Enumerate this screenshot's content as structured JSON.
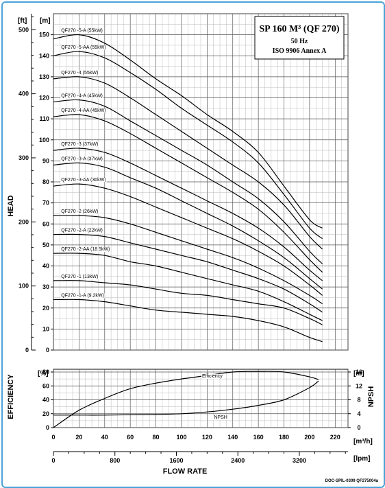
{
  "chart_data": [
    {
      "type": "line",
      "title": "SP 160 M³ (QF 270)",
      "subtitle_lines": [
        "50 Hz",
        "ISO 9906 Annex A"
      ],
      "ylabel": "HEAD",
      "y_unit_left": "[ft]",
      "y_unit_right": "[m]",
      "ylim_m": [
        0,
        150
      ],
      "ylim_ft": [
        0,
        500
      ],
      "y_ticks_m": [
        "150",
        "140",
        "130",
        "120",
        "110",
        "100",
        "90",
        "80",
        "70",
        "60",
        "50",
        "40",
        "30",
        "20",
        "10",
        "0"
      ],
      "y_ticks_ft": [
        "500",
        "400",
        "300",
        "200",
        "100",
        "0"
      ],
      "xlim": [
        0,
        230
      ],
      "grid": true,
      "series": [
        {
          "name": "QF270 -5-A (55kW)",
          "points": [
            [
              0,
              148
            ],
            [
              20,
              150
            ],
            [
              40,
              146
            ],
            [
              60,
              138
            ],
            [
              80,
              129
            ],
            [
              100,
              121
            ],
            [
              120,
              112
            ],
            [
              140,
              104
            ],
            [
              160,
              94
            ],
            [
              180,
              78
            ],
            [
              200,
              62
            ],
            [
              210,
              58
            ]
          ]
        },
        {
          "name": "QF270 -5-AA (55kW)",
          "points": [
            [
              0,
              140
            ],
            [
              20,
              142
            ],
            [
              40,
              139
            ],
            [
              60,
              132
            ],
            [
              80,
              124
            ],
            [
              100,
              115
            ],
            [
              120,
              107
            ],
            [
              140,
              99
            ],
            [
              160,
              89
            ],
            [
              180,
              74
            ],
            [
              200,
              58
            ],
            [
              210,
              53
            ]
          ]
        },
        {
          "name": "QF270 -4 (55kW)",
          "points": [
            [
              0,
              129
            ],
            [
              20,
              130
            ],
            [
              40,
              127
            ],
            [
              60,
              120
            ],
            [
              80,
              112
            ],
            [
              100,
              104
            ],
            [
              120,
              96
            ],
            [
              140,
              88
            ],
            [
              160,
              80
            ],
            [
              180,
              69
            ],
            [
              200,
              54
            ],
            [
              210,
              48
            ]
          ]
        },
        {
          "name": "QF270 -4-A (45kW)",
          "points": [
            [
              0,
              118
            ],
            [
              20,
              119
            ],
            [
              40,
              116
            ],
            [
              60,
              109
            ],
            [
              80,
              102
            ],
            [
              100,
              95
            ],
            [
              120,
              88
            ],
            [
              140,
              80
            ],
            [
              160,
              72
            ],
            [
              180,
              61
            ],
            [
              200,
              47
            ],
            [
              210,
              41
            ]
          ]
        },
        {
          "name": "QF270 -4-AA (45kW)",
          "points": [
            [
              0,
              111
            ],
            [
              20,
              112
            ],
            [
              40,
              109
            ],
            [
              60,
              103
            ],
            [
              80,
              96
            ],
            [
              100,
              89
            ],
            [
              120,
              82
            ],
            [
              140,
              75
            ],
            [
              160,
              67
            ],
            [
              180,
              56
            ],
            [
              200,
              43
            ],
            [
              210,
              37
            ]
          ]
        },
        {
          "name": "QF270 -3 (37kW)",
          "points": [
            [
              0,
              95
            ],
            [
              20,
              96
            ],
            [
              40,
              94
            ],
            [
              60,
              89
            ],
            [
              80,
              83
            ],
            [
              100,
              77
            ],
            [
              120,
              71
            ],
            [
              140,
              65
            ],
            [
              160,
              58
            ],
            [
              180,
              49
            ],
            [
              200,
              38
            ],
            [
              210,
              33
            ]
          ]
        },
        {
          "name": "QF270 -3-A (37kW)",
          "points": [
            [
              0,
              88
            ],
            [
              20,
              89
            ],
            [
              40,
              87
            ],
            [
              60,
              82
            ],
            [
              80,
              77
            ],
            [
              100,
              71
            ],
            [
              120,
              65
            ],
            [
              140,
              59
            ],
            [
              160,
              52
            ],
            [
              180,
              44
            ],
            [
              200,
              34
            ],
            [
              210,
              29
            ]
          ]
        },
        {
          "name": "QF270 -3-AA (30kW)",
          "points": [
            [
              0,
              78
            ],
            [
              20,
              79
            ],
            [
              40,
              77
            ],
            [
              60,
              73
            ],
            [
              80,
              68
            ],
            [
              100,
              63
            ],
            [
              120,
              58
            ],
            [
              140,
              53
            ],
            [
              160,
              47
            ],
            [
              180,
              40
            ],
            [
              200,
              31
            ],
            [
              210,
              26
            ]
          ]
        },
        {
          "name": "QF270 -2 (26kW)",
          "points": [
            [
              0,
              64
            ],
            [
              20,
              64
            ],
            [
              40,
              63
            ],
            [
              60,
              60
            ],
            [
              80,
              56
            ],
            [
              100,
              52
            ],
            [
              120,
              48
            ],
            [
              140,
              44
            ],
            [
              160,
              39
            ],
            [
              180,
              33
            ],
            [
              200,
              26
            ],
            [
              210,
              22
            ]
          ]
        },
        {
          "name": "QF270 -2-A (22kW)",
          "points": [
            [
              0,
              55
            ],
            [
              20,
              55
            ],
            [
              40,
              54
            ],
            [
              60,
              51
            ],
            [
              80,
              48
            ],
            [
              100,
              45
            ],
            [
              120,
              42
            ],
            [
              140,
              38
            ],
            [
              160,
              34
            ],
            [
              180,
              29
            ],
            [
              200,
              22
            ],
            [
              210,
              18
            ]
          ]
        },
        {
          "name": "QF270 -2-AA (18.5kW)",
          "points": [
            [
              0,
              46
            ],
            [
              20,
              46
            ],
            [
              40,
              45
            ],
            [
              60,
              42
            ],
            [
              80,
              40
            ],
            [
              100,
              37
            ],
            [
              120,
              34
            ],
            [
              140,
              31
            ],
            [
              160,
              28
            ],
            [
              180,
              23
            ],
            [
              200,
              17
            ],
            [
              210,
              14
            ]
          ]
        },
        {
          "name": "QF270 -1 (13kW)",
          "points": [
            [
              0,
              33
            ],
            [
              20,
              33
            ],
            [
              40,
              32
            ],
            [
              60,
              31
            ],
            [
              80,
              29
            ],
            [
              100,
              27
            ],
            [
              120,
              26
            ],
            [
              140,
              24
            ],
            [
              160,
              22
            ],
            [
              180,
              20
            ],
            [
              200,
              15
            ],
            [
              210,
              12
            ]
          ]
        },
        {
          "name": "QF270 -1-A (9.2kW)",
          "points": [
            [
              0,
              24
            ],
            [
              20,
              24
            ],
            [
              40,
              23
            ],
            [
              60,
              21
            ],
            [
              80,
              19
            ],
            [
              100,
              18
            ],
            [
              120,
              17
            ],
            [
              140,
              16
            ],
            [
              160,
              14
            ],
            [
              180,
              11
            ],
            [
              200,
              6
            ],
            [
              210,
              4
            ]
          ]
        }
      ]
    },
    {
      "type": "line",
      "ylabel_left": "EFFICIENCY",
      "ylabel_right": "NPSH",
      "y_unit_left": "[%]",
      "y_unit_right": "[m]",
      "ylim_left": [
        0,
        80
      ],
      "ylim_right": [
        0,
        16
      ],
      "y_ticks_left": [
        "80",
        "60",
        "40",
        "20",
        "0"
      ],
      "y_ticks_right": [
        "16",
        "12",
        "8",
        "4",
        "0"
      ],
      "xlabel": "FLOW RATE",
      "x_unit_primary": "[m³/h]",
      "x_ticks_primary": [
        "0",
        "20",
        "40",
        "60",
        "80",
        "100",
        "120",
        "140",
        "160",
        "180",
        "200",
        "220"
      ],
      "xlim": [
        0,
        230
      ],
      "x_unit_secondary": "[lpm]",
      "x_ticks_secondary": [
        "0",
        "800",
        "1600",
        "2400",
        "3200"
      ],
      "grid": true,
      "series": [
        {
          "name": "Efficiency",
          "axis": "left",
          "points": [
            [
              0,
              0
            ],
            [
              20,
              25
            ],
            [
              40,
              42
            ],
            [
              60,
              56
            ],
            [
              80,
              64
            ],
            [
              100,
              70
            ],
            [
              120,
              75
            ],
            [
              140,
              80
            ],
            [
              160,
              81
            ],
            [
              180,
              80
            ],
            [
              200,
              73
            ],
            [
              207,
              69
            ]
          ]
        },
        {
          "name": "NPSH",
          "axis": "right",
          "points": [
            [
              0,
              3.6
            ],
            [
              20,
              3.6
            ],
            [
              40,
              3.6
            ],
            [
              60,
              3.7
            ],
            [
              80,
              3.8
            ],
            [
              100,
              4
            ],
            [
              120,
              4.5
            ],
            [
              140,
              5.3
            ],
            [
              160,
              6.4
            ],
            [
              180,
              8
            ],
            [
              200,
              11.5
            ],
            [
              207,
              13.4
            ]
          ]
        }
      ]
    }
  ],
  "doc_code": "DOC-SPIL-0309 QF275004a"
}
